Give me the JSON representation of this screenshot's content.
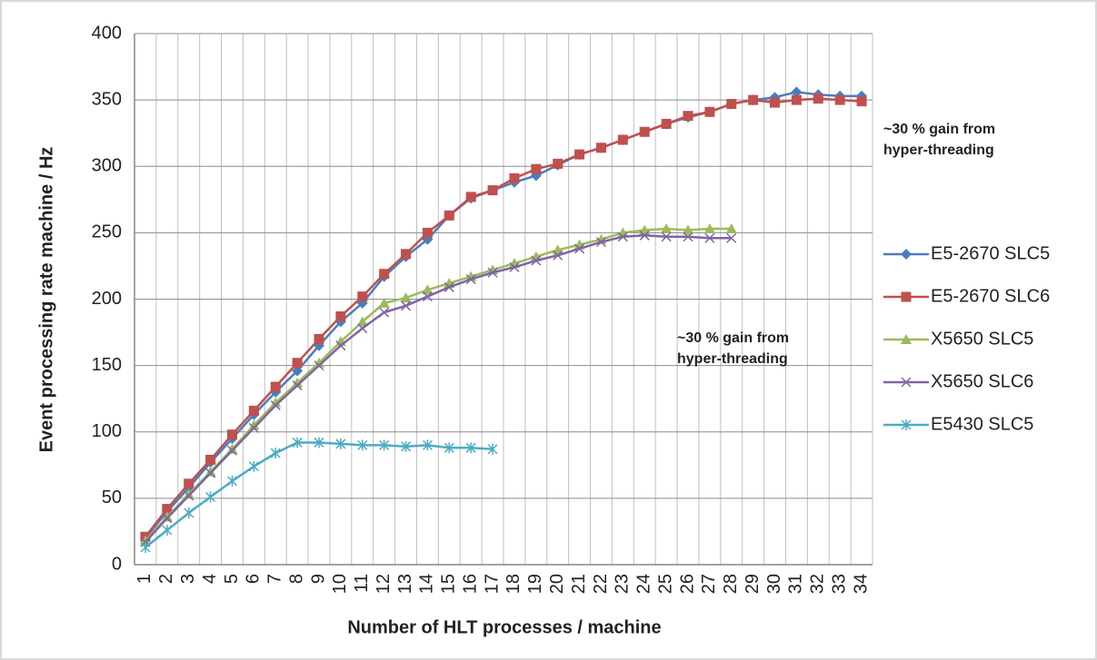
{
  "chart_data": {
    "type": "line",
    "x_label": "Number of HLT processes / machine",
    "y_label": "Event processing rate machine / Hz",
    "categories": [
      "1",
      "2",
      "3",
      "4",
      "5",
      "6",
      "7",
      "8",
      "9",
      "10",
      "11",
      "12",
      "13",
      "14",
      "15",
      "16",
      "17",
      "18",
      "19",
      "20",
      "21",
      "22",
      "23",
      "24",
      "25",
      "26",
      "27",
      "28",
      "29",
      "30",
      "31",
      "32",
      "33",
      "34"
    ],
    "ylim": [
      0,
      400
    ],
    "yticks": [
      0,
      50,
      100,
      150,
      200,
      250,
      300,
      350,
      400
    ],
    "grid": true,
    "legend": "right",
    "series": [
      {
        "name": "E5-2670 SLC5",
        "color": "#4a7ebb",
        "marker": "diamond",
        "values": [
          20,
          40,
          58,
          77,
          95,
          113,
          130,
          146,
          165,
          183,
          197,
          217,
          232,
          245,
          263,
          276,
          282,
          288,
          293,
          301,
          309,
          314,
          320,
          326,
          332,
          337,
          341,
          347,
          350,
          352,
          356,
          354,
          353,
          353
        ]
      },
      {
        "name": "E5-2670 SLC6",
        "color": "#c0504d",
        "marker": "square",
        "values": [
          21,
          42,
          61,
          79,
          98,
          116,
          134,
          152,
          170,
          187,
          202,
          219,
          234,
          250,
          263,
          277,
          282,
          291,
          298,
          302,
          309,
          314,
          320,
          326,
          332,
          338,
          341,
          347,
          350,
          348,
          350,
          351,
          350,
          349
        ]
      },
      {
        "name": "X5650 SLC5",
        "color": "#9bbb59",
        "marker": "triangle",
        "values": [
          18,
          36,
          53,
          70,
          87,
          105,
          122,
          137,
          152,
          168,
          183,
          197,
          201,
          207,
          212,
          217,
          222,
          227,
          232,
          237,
          241,
          245,
          250,
          252,
          253,
          252,
          253,
          253,
          null,
          null,
          null,
          null,
          null,
          null
        ]
      },
      {
        "name": "X5650 SLC6",
        "color": "#8064a2",
        "marker": "x",
        "values": [
          17,
          35,
          52,
          69,
          86,
          103,
          120,
          135,
          150,
          165,
          178,
          190,
          195,
          202,
          209,
          215,
          220,
          224,
          229,
          233,
          238,
          243,
          247,
          248,
          247,
          247,
          246,
          246,
          null,
          null,
          null,
          null,
          null,
          null
        ]
      },
      {
        "name": "E5430 SLC5",
        "color": "#4bacc6",
        "marker": "star",
        "values": [
          13,
          26,
          39,
          51,
          63,
          74,
          84,
          92,
          92,
          91,
          90,
          90,
          89,
          90,
          88,
          88,
          87,
          null,
          null,
          null,
          null,
          null,
          null,
          null,
          null,
          null,
          null,
          null,
          null,
          null,
          null,
          null,
          null,
          null
        ]
      }
    ],
    "annotations": [
      {
        "lines": [
          "~30 % gain from",
          "hyper-threading"
        ],
        "color": "#8b1a1a"
      },
      {
        "lines": [
          "~30 % gain from",
          "hyper-threading"
        ],
        "color": "#2e8b22"
      }
    ]
  }
}
